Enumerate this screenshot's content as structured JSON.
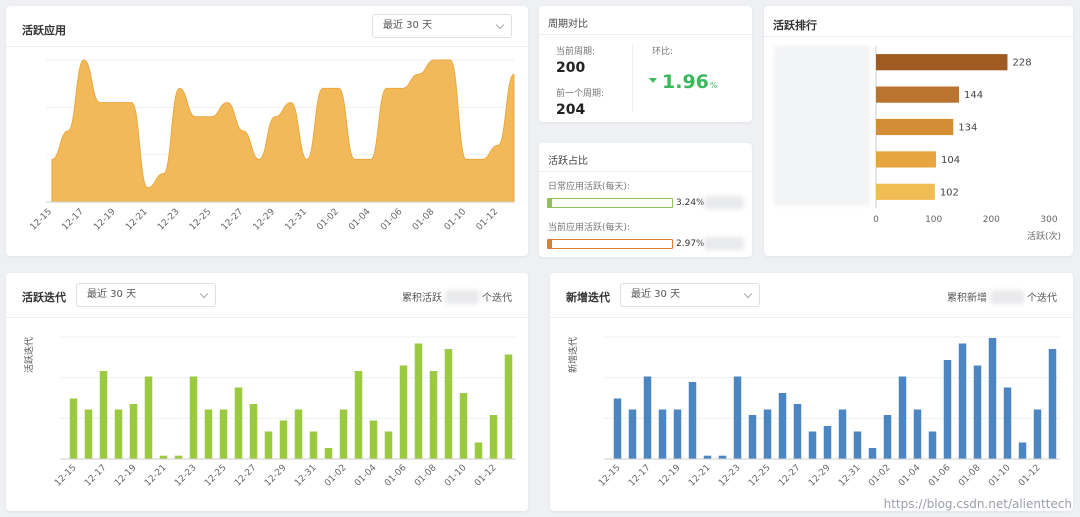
{
  "cards": {
    "active_apps": {
      "title": "活跃应用",
      "range_select": "最近 30 天"
    },
    "period_compare": {
      "title": "周期对比",
      "current_label": "当前周期:",
      "current_value": "200",
      "prev_label": "前一个周期:",
      "prev_value": "204",
      "ratio_label": "环比:",
      "ratio_value": "1.96",
      "ratio_unit": "%"
    },
    "active_ratio": {
      "title": "活跃占比",
      "daily_label": "日常应用活跃(每天):",
      "daily_value": "3.24%",
      "daily_fraction": 0.0324,
      "current_label": "当前应用活跃(每天):",
      "current_value": "2.97%",
      "current_fraction": 0.0297
    },
    "active_rank": {
      "title": "活跃排行"
    },
    "active_iter": {
      "title": "活跃迭代",
      "range_select": "最近 30 天",
      "summary_prefix": "累积活跃",
      "summary_suffix": "个迭代"
    },
    "new_iter": {
      "title": "新增迭代",
      "range_select": "最近 30 天",
      "summary_prefix": "累积新增",
      "summary_suffix": "个迭代"
    }
  },
  "colors": {
    "area": "#f2b95a",
    "rank": [
      "#a05b23",
      "#b9742d",
      "#d48d34",
      "#e6a53f",
      "#f0bd55"
    ],
    "green": "#9bc940",
    "blue": "#4b86c3",
    "up_green": "#3bb85a"
  },
  "watermark": "https://blog.csdn.net/alienttech",
  "chart_data": [
    {
      "type": "area",
      "x": [
        "12-15",
        "12-16",
        "12-17",
        "12-18",
        "12-19",
        "12-20",
        "12-21",
        "12-22",
        "12-23",
        "12-24",
        "12-25",
        "12-26",
        "12-27",
        "12-28",
        "12-29",
        "12-30",
        "12-31",
        "01-01",
        "01-02",
        "01-03",
        "01-04",
        "01-05",
        "01-06",
        "01-07",
        "01-08",
        "01-09",
        "01-10",
        "01-11",
        "01-12",
        "01-13"
      ],
      "x_tick_labels": [
        "12-15",
        "12-17",
        "12-19",
        "12-21",
        "12-23",
        "12-25",
        "12-27",
        "12-29",
        "12-31",
        "01-02",
        "01-04",
        "01-06",
        "01-08",
        "01-10",
        "01-12"
      ],
      "values": [
        3,
        5,
        10,
        7,
        7,
        7,
        1,
        2,
        8,
        6,
        6,
        7,
        5,
        3,
        6,
        7,
        3,
        8,
        8,
        3,
        3,
        8,
        8,
        9,
        10,
        10,
        3,
        3,
        4,
        9
      ],
      "ylim": [
        0,
        10
      ]
    },
    {
      "type": "bar",
      "orientation": "horizontal",
      "values": [
        228,
        144,
        134,
        104,
        102
      ],
      "xlim": [
        0,
        300
      ],
      "x_ticks": [
        "0",
        "100",
        "200",
        "300"
      ],
      "xlabel": "活跃(次)"
    },
    {
      "type": "bar",
      "x": [
        "12-15",
        "12-16",
        "12-17",
        "12-18",
        "12-19",
        "12-20",
        "12-21",
        "12-22",
        "12-23",
        "12-24",
        "12-25",
        "12-26",
        "12-27",
        "12-28",
        "12-29",
        "12-30",
        "12-31",
        "01-01",
        "01-02",
        "01-03",
        "01-04",
        "01-05",
        "01-06",
        "01-07",
        "01-08",
        "01-09",
        "01-10",
        "01-11",
        "01-12",
        "01-13"
      ],
      "x_tick_labels": [
        "12-15",
        "12-17",
        "12-19",
        "12-21",
        "12-23",
        "12-25",
        "12-27",
        "12-29",
        "12-31",
        "01-02",
        "01-04",
        "01-06",
        "01-08",
        "01-10",
        "01-12"
      ],
      "values": [
        5.5,
        4.5,
        8,
        4.5,
        5,
        7.5,
        0.3,
        0.3,
        7.5,
        4.5,
        4.5,
        6.5,
        5,
        2.5,
        3.5,
        4.5,
        2.5,
        1,
        4.5,
        8,
        3.5,
        2.5,
        8.5,
        10.5,
        8,
        10,
        6,
        1.5,
        4,
        9.5
      ],
      "ylim": [
        0,
        12
      ],
      "ylabel": "活跃迭代"
    },
    {
      "type": "bar",
      "x": [
        "12-15",
        "12-16",
        "12-17",
        "12-18",
        "12-19",
        "12-20",
        "12-21",
        "12-22",
        "12-23",
        "12-24",
        "12-25",
        "12-26",
        "12-27",
        "12-28",
        "12-29",
        "12-30",
        "12-31",
        "01-01",
        "01-02",
        "01-03",
        "01-04",
        "01-05",
        "01-06",
        "01-07",
        "01-08",
        "01-09",
        "01-10",
        "01-11",
        "01-12",
        "01-13"
      ],
      "x_tick_labels": [
        "12-15",
        "12-17",
        "12-19",
        "12-21",
        "12-23",
        "12-25",
        "12-27",
        "12-29",
        "12-31",
        "01-02",
        "01-04",
        "01-06",
        "01-08",
        "01-10",
        "01-12"
      ],
      "values": [
        5.5,
        4.5,
        7.5,
        4.5,
        4.5,
        7,
        0.3,
        0.3,
        7.5,
        4,
        4.5,
        6,
        5,
        2.5,
        3,
        4.5,
        2.5,
        1,
        4,
        7.5,
        4.5,
        2.5,
        9,
        10.5,
        8.5,
        11,
        6.5,
        1.5,
        4.5,
        10
      ],
      "ylim": [
        0,
        12
      ],
      "ylabel": "新增迭代"
    }
  ]
}
